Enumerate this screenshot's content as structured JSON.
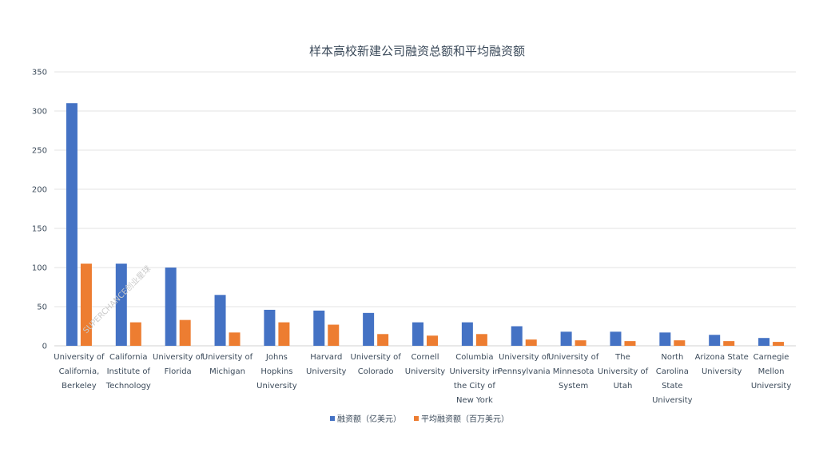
{
  "chart_data": {
    "type": "bar",
    "title": "样本高校新建公司融资总额和平均融资额",
    "xlabel": "",
    "ylabel": "",
    "ylim": [
      0,
      350
    ],
    "yticks": [
      0,
      50,
      100,
      150,
      200,
      250,
      300,
      350
    ],
    "grid": true,
    "legend_position": "bottom",
    "categories": [
      [
        "University of",
        "California,",
        "Berkeley"
      ],
      [
        "California",
        "Institute of",
        "Technology"
      ],
      [
        "University of",
        "Florida"
      ],
      [
        "University of",
        "Michigan"
      ],
      [
        "Johns",
        "Hopkins",
        "University"
      ],
      [
        "Harvard",
        "University"
      ],
      [
        "University of",
        "Colorado"
      ],
      [
        "Cornell",
        "University"
      ],
      [
        "Columbia",
        "University in",
        "the City of",
        "New York"
      ],
      [
        "University of",
        "Pennsylvania"
      ],
      [
        "University of",
        "Minnesota",
        "System"
      ],
      [
        "The",
        "University of",
        "Utah"
      ],
      [
        "North",
        "Carolina",
        "State",
        "University"
      ],
      [
        "Arizona State",
        "University"
      ],
      [
        "Carnegie",
        "Mellon",
        "University"
      ]
    ],
    "series": [
      {
        "name": "融资额（亿美元）",
        "color": "#4472c4",
        "values": [
          310,
          105,
          100,
          65,
          46,
          45,
          42,
          30,
          30,
          25,
          18,
          18,
          17,
          14,
          10
        ]
      },
      {
        "name": "平均融资额（百万美元）",
        "color": "#ed7d31",
        "values": [
          105,
          30,
          33,
          17,
          30,
          27,
          15,
          13,
          15,
          8,
          7,
          6,
          7,
          6,
          5
        ]
      }
    ]
  },
  "watermark": "SUPERCHANCE创业星球"
}
